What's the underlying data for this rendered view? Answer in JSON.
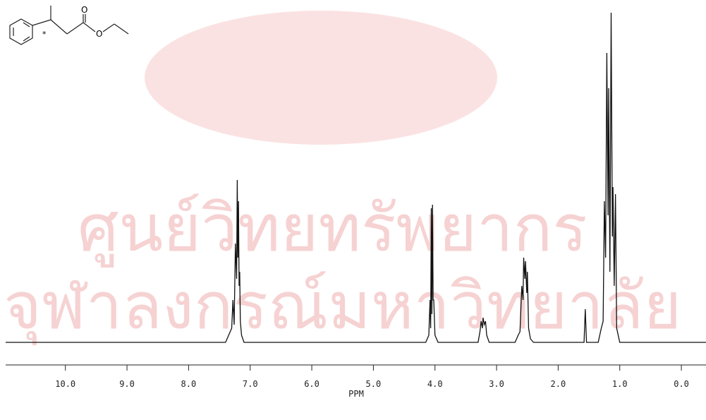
{
  "chart_data": {
    "type": "line",
    "x_label": "PPM",
    "xlim": [
      10.97,
      -0.4
    ],
    "ylim": [
      -20,
      470
    ],
    "xticks": [
      {
        "value": 10,
        "label": "10.0"
      },
      {
        "value": 9,
        "label": "9.0"
      },
      {
        "value": 8,
        "label": "8.0"
      },
      {
        "value": 7,
        "label": "7.0"
      },
      {
        "value": 6,
        "label": "6.0"
      },
      {
        "value": 5,
        "label": "5.0"
      },
      {
        "value": 4,
        "label": "4.0"
      },
      {
        "value": 3,
        "label": "3.0"
      },
      {
        "value": 2,
        "label": "2.0"
      },
      {
        "value": 1,
        "label": "1.0"
      },
      {
        "value": 0,
        "label": "0.0"
      }
    ],
    "color": "#111111",
    "x": [
      10.97,
      7.4,
      7.3,
      7.28,
      7.26,
      7.24,
      7.22,
      7.21,
      7.2,
      7.19,
      7.18,
      7.17,
      7.16,
      7.14,
      7.1,
      4.15,
      4.1,
      4.08,
      4.07,
      4.06,
      4.05,
      4.04,
      4.03,
      4.02,
      4.0,
      3.95,
      3.3,
      3.27,
      3.25,
      3.23,
      3.22,
      3.2,
      3.18,
      3.16,
      3.12,
      2.7,
      2.65,
      2.62,
      2.59,
      2.57,
      2.56,
      2.54,
      2.53,
      2.51,
      2.5,
      2.48,
      2.45,
      2.4,
      1.58,
      1.56,
      1.54,
      1.35,
      1.3,
      1.27,
      1.25,
      1.23,
      1.21,
      1.19,
      1.18,
      1.16,
      1.14,
      1.12,
      1.11,
      1.09,
      1.07,
      1.05,
      1.0,
      -0.4
    ],
    "values": [
      0,
      0,
      20,
      60,
      25,
      140,
      90,
      230,
      120,
      200,
      80,
      100,
      30,
      10,
      0,
      0,
      10,
      60,
      20,
      190,
      40,
      195,
      60,
      60,
      10,
      0,
      0,
      15,
      30,
      20,
      35,
      25,
      30,
      10,
      0,
      0,
      10,
      15,
      80,
      60,
      120,
      90,
      115,
      70,
      100,
      20,
      5,
      0,
      0,
      47,
      0,
      0,
      20,
      30,
      200,
      120,
      410,
      180,
      360,
      100,
      467,
      150,
      220,
      80,
      210,
      20,
      0,
      0
    ],
    "watermark": [
      "ศูนย์วิทยทรัพยากร",
      "จุฬาลงกรณ์มหาวิทยาลัย"
    ]
  },
  "molecule": {
    "atoms": [
      "O",
      "O",
      "*"
    ]
  }
}
